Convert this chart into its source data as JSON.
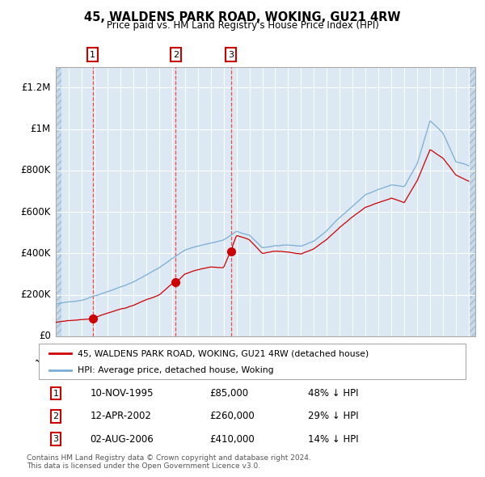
{
  "title": "45, WALDENS PARK ROAD, WOKING, GU21 4RW",
  "subtitle": "Price paid vs. HM Land Registry's House Price Index (HPI)",
  "legend_line1": "45, WALDENS PARK ROAD, WOKING, GU21 4RW (detached house)",
  "legend_line2": "HPI: Average price, detached house, Woking",
  "footnote1": "Contains HM Land Registry data © Crown copyright and database right 2024.",
  "footnote2": "This data is licensed under the Open Government Licence v3.0.",
  "transactions": [
    {
      "num": 1,
      "date": "10-NOV-1995",
      "price": 85000,
      "hpi_pct": "48% ↓ HPI",
      "date_x": 1995.86
    },
    {
      "num": 2,
      "date": "12-APR-2002",
      "price": 260000,
      "hpi_pct": "29% ↓ HPI",
      "date_x": 2002.28
    },
    {
      "num": 3,
      "date": "02-AUG-2006",
      "price": 410000,
      "hpi_pct": "14% ↓ HPI",
      "date_x": 2006.58
    }
  ],
  "red_line_color": "#cc0000",
  "blue_line_color": "#7aaed4",
  "background_color": "#dce9f5",
  "grid_color": "#ffffff",
  "vline_color": "#ff4444",
  "ylim": [
    0,
    1300000
  ],
  "xlim_start": 1993.0,
  "xlim_end": 2025.5,
  "yticks": [
    0,
    200000,
    400000,
    600000,
    800000,
    1000000,
    1200000
  ],
  "ytick_labels": [
    "£0",
    "£200K",
    "£400K",
    "£600K",
    "£800K",
    "£1M",
    "£1.2M"
  ],
  "xticks": [
    1993,
    1994,
    1995,
    1996,
    1997,
    1998,
    1999,
    2000,
    2001,
    2002,
    2003,
    2004,
    2005,
    2006,
    2007,
    2008,
    2009,
    2010,
    2011,
    2012,
    2013,
    2014,
    2015,
    2016,
    2017,
    2018,
    2019,
    2020,
    2021,
    2022,
    2023,
    2024,
    2025
  ],
  "hpi_key_years": [
    1993,
    1995,
    1997,
    1999,
    2001,
    2002,
    2003,
    2004,
    2005,
    2006,
    2007,
    2008,
    2009,
    2010,
    2011,
    2012,
    2013,
    2014,
    2015,
    2016,
    2017,
    2018,
    2019,
    2020,
    2021,
    2022,
    2023,
    2024,
    2025
  ],
  "hpi_key_vals": [
    155000,
    175000,
    220000,
    265000,
    335000,
    380000,
    420000,
    440000,
    455000,
    470000,
    510000,
    490000,
    430000,
    440000,
    440000,
    435000,
    460000,
    510000,
    575000,
    630000,
    685000,
    710000,
    730000,
    720000,
    830000,
    1040000,
    980000,
    840000,
    820000
  ],
  "red_key_years": [
    1993,
    1995.86,
    1996,
    1997,
    1998,
    1999,
    2000,
    2001,
    2002.28,
    2002.5,
    2003,
    2004,
    2005,
    2006,
    2006.58,
    2007,
    2008,
    2009,
    2010,
    2011,
    2012,
    2013,
    2014,
    2015,
    2016,
    2017,
    2018,
    2019,
    2020,
    2021,
    2022,
    2023,
    2024,
    2025
  ],
  "red_key_vals": [
    68000,
    85000,
    90000,
    110000,
    130000,
    148000,
    173000,
    195000,
    260000,
    265000,
    295000,
    315000,
    330000,
    325000,
    410000,
    480000,
    460000,
    395000,
    405000,
    400000,
    390000,
    415000,
    460000,
    520000,
    570000,
    620000,
    645000,
    665000,
    645000,
    750000,
    900000,
    860000,
    780000,
    750000
  ]
}
